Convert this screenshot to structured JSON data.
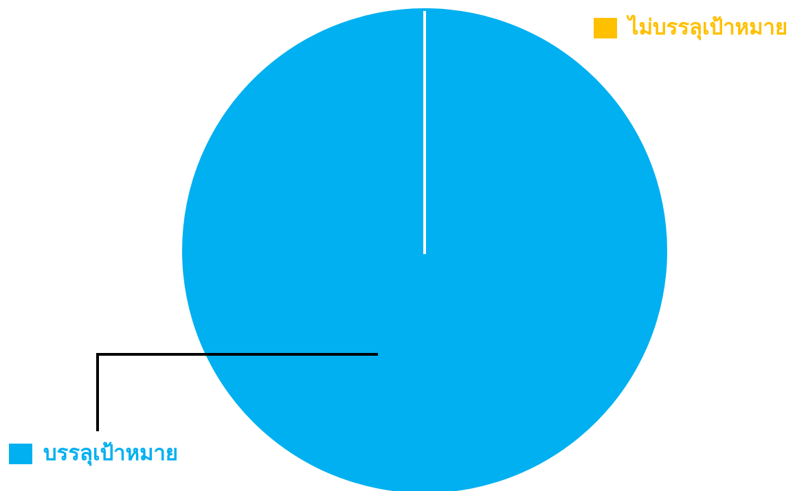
{
  "chart_data": {
    "type": "pie",
    "title": "",
    "categories": [
      "ไม่บรรลุเป้าหมาย",
      "บรรลุเป้าหมาย"
    ],
    "values": [
      0,
      100
    ],
    "colors": [
      "#FFC000",
      "#00B0F0"
    ],
    "legend": "callouts"
  },
  "legend": {
    "not_achieved": {
      "label": "ไม่บรรลุเป้าหมาย",
      "color": "#FFC000"
    },
    "achieved": {
      "label": "บรรลุเป้าหมาย",
      "color": "#00B0F0"
    }
  },
  "colors": {
    "background": "#FFFFFF",
    "leader_line": "#000000",
    "slice_border": "#FFFFFF"
  }
}
